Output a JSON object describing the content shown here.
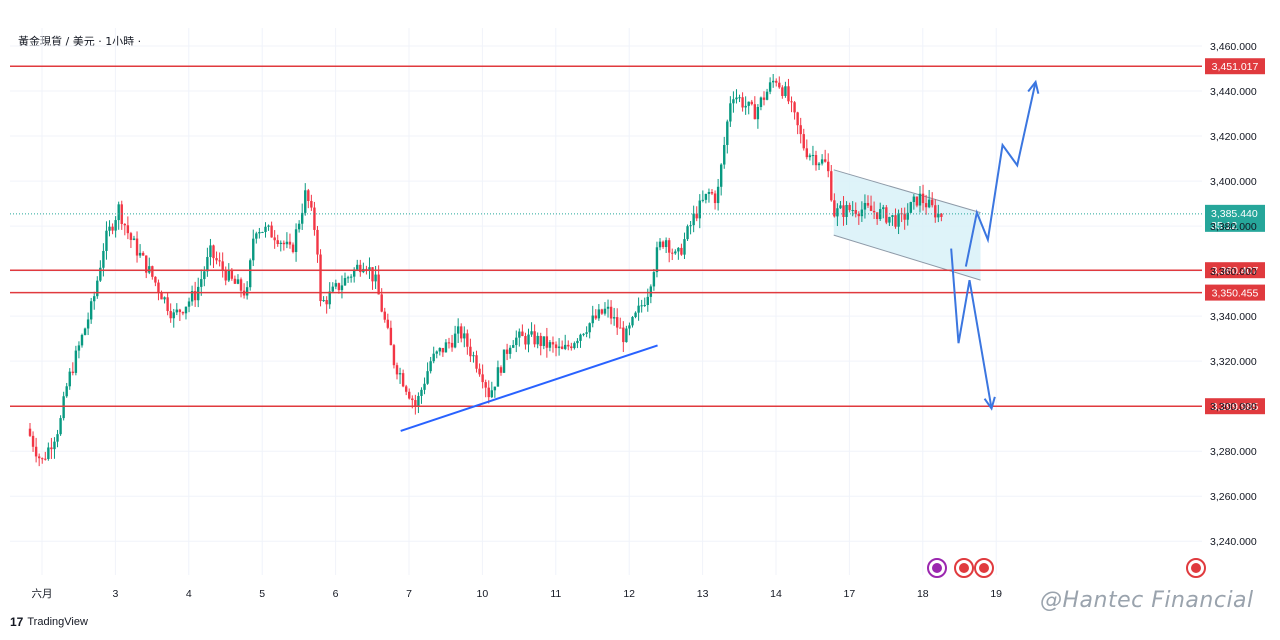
{
  "header": {
    "symbol_title": "黃金現貨 / 美元 · 1小時 ·"
  },
  "footer": {
    "brand_mark": "17",
    "brand": "TradingView"
  },
  "watermark": "@Hantec Financial",
  "colors": {
    "up": "#089981",
    "down": "#f23645",
    "level": "#e03a3e",
    "trend": "#2962ff",
    "channel_fill": "#d8f1f8",
    "projection": "#3b76e0",
    "current_price_bg": "#26a69a"
  },
  "chart_data": {
    "type": "candlestick",
    "title": "",
    "xlabel": "",
    "ylabel": "",
    "ylim": [
      3225,
      3468
    ],
    "y_ticks": [
      "3,240.000",
      "3,260.000",
      "3,280.000",
      "3,300.000",
      "3,320.000",
      "3,340.000",
      "3,360.000",
      "3,380.000",
      "3,400.000",
      "3,420.000",
      "3,440.000",
      "3,460.000"
    ],
    "y_tick_values": [
      3240,
      3260,
      3280,
      3300,
      3320,
      3340,
      3360,
      3380,
      3400,
      3420,
      3440,
      3460
    ],
    "x_ticks": [
      "六月",
      "3",
      "4",
      "5",
      "6",
      "7",
      "10",
      "11",
      "12",
      "13",
      "14",
      "17",
      "18",
      "19"
    ],
    "x_tick_slots": [
      0,
      1,
      2,
      3,
      4,
      5,
      6,
      7,
      8,
      9,
      10,
      11,
      12,
      13
    ],
    "slot_units": "trading days, 24 bars per day; 六月 = Jun 2",
    "horizontal_levels": [
      {
        "value": 3451.017,
        "label": "3,451.017"
      },
      {
        "value": 3360.407,
        "label": "3,360.407"
      },
      {
        "value": 3350.455,
        "label": "3,350.455"
      },
      {
        "value": 3299.985,
        "label": "3,299.985"
      }
    ],
    "current_price": {
      "value": 3385.44,
      "label": "3,385.440",
      "countdown": "35:12"
    },
    "trendline": {
      "start": [
        5.05,
        3289
      ],
      "end": [
        8.55,
        3327
      ]
    },
    "channel": {
      "upper": [
        [
          10.95,
          3405
        ],
        [
          12.95,
          3386
        ]
      ],
      "lower": [
        [
          10.95,
          3376
        ],
        [
          12.95,
          3356
        ]
      ]
    },
    "projections": [
      {
        "name": "bullish",
        "points": [
          [
            12.75,
            3362
          ],
          [
            12.9,
            3386
          ],
          [
            13.05,
            3374
          ],
          [
            13.25,
            3416
          ],
          [
            13.45,
            3407
          ],
          [
            13.7,
            3444
          ]
        ]
      },
      {
        "name": "bearish",
        "points": [
          [
            12.55,
            3370
          ],
          [
            12.65,
            3328
          ],
          [
            12.8,
            3356
          ],
          [
            13.1,
            3299
          ]
        ]
      }
    ],
    "waypoints": [
      [
        0.0,
        3290
      ],
      [
        0.2,
        3275
      ],
      [
        0.45,
        3292
      ],
      [
        0.55,
        3310
      ],
      [
        0.9,
        3346
      ],
      [
        1.05,
        3372
      ],
      [
        1.25,
        3388
      ],
      [
        1.4,
        3375
      ],
      [
        1.7,
        3358
      ],
      [
        2.0,
        3340
      ],
      [
        2.3,
        3350
      ],
      [
        2.5,
        3368
      ],
      [
        2.8,
        3355
      ],
      [
        3.0,
        3350
      ],
      [
        3.1,
        3380
      ],
      [
        3.4,
        3376
      ],
      [
        3.6,
        3368
      ],
      [
        3.8,
        3395
      ],
      [
        3.95,
        3375
      ],
      [
        4.0,
        3345
      ],
      [
        4.3,
        3355
      ],
      [
        4.6,
        3365
      ],
      [
        4.75,
        3355
      ],
      [
        5.0,
        3320
      ],
      [
        5.3,
        3300
      ],
      [
        5.5,
        3320
      ],
      [
        5.9,
        3333
      ],
      [
        6.2,
        3315
      ],
      [
        6.3,
        3305
      ],
      [
        6.6,
        3330
      ],
      [
        6.9,
        3330
      ],
      [
        7.3,
        3324
      ],
      [
        7.6,
        3335
      ],
      [
        7.9,
        3343
      ],
      [
        8.15,
        3330
      ],
      [
        8.45,
        3350
      ],
      [
        8.6,
        3370
      ],
      [
        8.7,
        3375
      ],
      [
        8.85,
        3365
      ],
      [
        9.1,
        3385
      ],
      [
        9.3,
        3395
      ],
      [
        9.4,
        3392
      ],
      [
        9.6,
        3440
      ],
      [
        9.9,
        3430
      ],
      [
        10.2,
        3446
      ],
      [
        10.35,
        3438
      ],
      [
        10.6,
        3414
      ],
      [
        10.9,
        3407
      ],
      [
        11.0,
        3386
      ],
      [
        11.3,
        3388
      ],
      [
        11.6,
        3386
      ],
      [
        11.9,
        3382
      ],
      [
        12.15,
        3393
      ],
      [
        12.42,
        3385
      ]
    ]
  }
}
